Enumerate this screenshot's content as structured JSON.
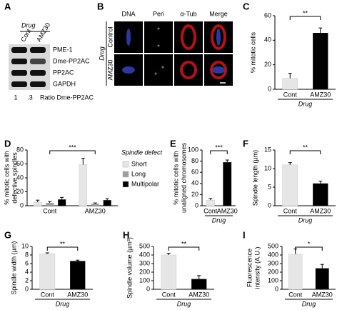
{
  "blot": {
    "panel": "A",
    "drug": "Drug",
    "lanes": [
      "Cont",
      "AMZ30"
    ],
    "bands": [
      "PME-1",
      "Dme-PP2AC",
      "PP2AC",
      "GAPDH"
    ],
    "ratio": [
      "1",
      ".3"
    ],
    "ratio_label": "Ratio Dme-PP2AC"
  },
  "micrographs": {
    "panel": "B",
    "drug": "Drug",
    "conditions": [
      "Control",
      "AMZ30"
    ],
    "channels": [
      {
        "name": "DNA",
        "color": "#2f3fb0"
      },
      {
        "name": "Peri",
        "color": "#3aa13a"
      },
      {
        "name": "α-Tub",
        "color": "#d4141c"
      },
      {
        "name": "Merge",
        "color": "#000000"
      }
    ]
  },
  "chart_data": [
    {
      "type": "bar",
      "panel": "C",
      "ylabel": [
        "% mitotic cells"
      ],
      "categories": [
        "Cont",
        "AMZ30"
      ],
      "xlabel": "Drug",
      "values": [
        9,
        46
      ],
      "errors": [
        4,
        4
      ],
      "colors": [
        "#e6e6e6",
        "#000000"
      ],
      "ylim": [
        0,
        60
      ],
      "yticks": [
        0,
        20,
        40,
        60
      ],
      "significance": "**"
    },
    {
      "type": "bar",
      "panel": "D",
      "ylabel": [
        "% mitotic cells with",
        "defective spindles"
      ],
      "categories": [
        "Cont",
        "AMZ30"
      ],
      "series": [
        {
          "name": "Short",
          "color": "#e6e6e6",
          "values": [
            5,
            59
          ],
          "errors": [
            3,
            9
          ]
        },
        {
          "name": "Long",
          "color": "#9e9e9e",
          "values": [
            4,
            3
          ],
          "errors": [
            2,
            1
          ]
        },
        {
          "name": "Multipolar",
          "color": "#000000",
          "values": [
            9,
            8
          ],
          "errors": [
            3,
            2
          ]
        }
      ],
      "legend_title": "Spindle defect",
      "legend": "right",
      "ylim": [
        0,
        80
      ],
      "yticks": [
        0,
        20,
        40,
        60,
        80
      ],
      "significance": "***"
    },
    {
      "type": "bar",
      "panel": "E",
      "ylabel": [
        "% mitotic cells with",
        "unaligned chromosomes"
      ],
      "categories": [
        "Cont",
        "AMZ30"
      ],
      "xlabel": "Drug",
      "values": [
        10,
        78
      ],
      "errors": [
        3,
        4
      ],
      "colors": [
        "#e6e6e6",
        "#000000"
      ],
      "ylim": [
        0,
        100
      ],
      "yticks": [
        0,
        20,
        40,
        60,
        80,
        100
      ],
      "significance": "***"
    },
    {
      "type": "bar",
      "panel": "F",
      "ylabel": [
        "Spindle length (µm)"
      ],
      "categories": [
        "Cont",
        "AMZ30"
      ],
      "xlabel": "Drug",
      "values": [
        11,
        6
      ],
      "errors": [
        0.6,
        0.6
      ],
      "colors": [
        "#e6e6e6",
        "#000000"
      ],
      "ylim": [
        0,
        15
      ],
      "yticks": [
        0,
        5,
        10,
        15
      ],
      "significance": "**"
    },
    {
      "type": "bar",
      "panel": "G",
      "ylabel": [
        "Spindle width (µm)"
      ],
      "categories": [
        "Cont",
        "AMZ30"
      ],
      "xlabel": "Drug",
      "values": [
        8.3,
        6.6
      ],
      "errors": [
        0.2,
        0.2
      ],
      "colors": [
        "#e6e6e6",
        "#000000"
      ],
      "ylim": [
        0,
        10
      ],
      "yticks": [
        0,
        2,
        4,
        6,
        8,
        10
      ],
      "significance": "**"
    },
    {
      "type": "bar",
      "panel": "H",
      "ylabel": [
        "Spindle volume (µm³)"
      ],
      "categories": [
        "Cont",
        "AMZ30"
      ],
      "xlabel": "Drug",
      "values": [
        400,
        120
      ],
      "errors": [
        20,
        40
      ],
      "colors": [
        "#e6e6e6",
        "#000000"
      ],
      "ylim": [
        0,
        500
      ],
      "yticks": [
        0,
        100,
        200,
        300,
        400,
        500
      ],
      "significance": "**"
    },
    {
      "type": "bar",
      "panel": "I",
      "ylabel": [
        "Fluorescence",
        "intensity (A.U.)"
      ],
      "categories": [
        "Cont",
        "AMZ30"
      ],
      "xlabel": "Drug",
      "values": [
        410,
        245
      ],
      "errors": [
        60,
        45
      ],
      "colors": [
        "#e6e6e6",
        "#000000"
      ],
      "ylim": [
        0,
        500
      ],
      "yticks": [
        0,
        100,
        200,
        300,
        400,
        500
      ],
      "significance": "*"
    }
  ]
}
